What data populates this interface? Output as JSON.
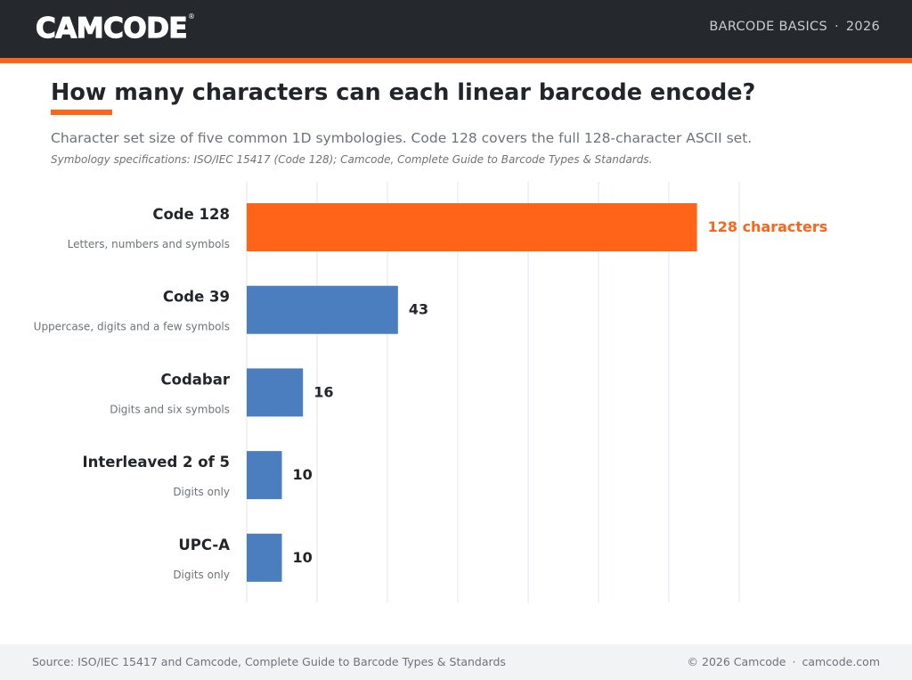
{
  "header": {
    "logo_text": "CAMCODE",
    "logo_mark": "®",
    "section": "BARCODE BASICS",
    "separator": "·",
    "year": "2026"
  },
  "title": "How many characters can each linear barcode encode?",
  "subtitle": "Character set size of five common 1D symbologies. Code 128 covers the full 128-character ASCII set.",
  "note": "Symbology specifications: ISO/IEC 15417 (Code 128); Camcode, Complete Guide to Barcode Types & Standards.",
  "colors": {
    "highlight": "#ff6419",
    "bar": "#4a7ebf",
    "grid": "#e3e5e8",
    "label": "#22262b",
    "sublabel": "#6d737b"
  },
  "chart_data": {
    "type": "bar",
    "orientation": "horizontal",
    "categories": [
      "Code 128",
      "Code 39",
      "Codabar",
      "Interleaved 2 of 5",
      "UPC-A"
    ],
    "descriptions": [
      "Letters, numbers and symbols",
      "Uppercase, digits and a few symbols",
      "Digits and six symbols",
      "Digits only",
      "Digits only"
    ],
    "values": [
      128,
      43,
      16,
      10,
      10
    ],
    "value_labels": [
      "128 characters",
      "43",
      "16",
      "10",
      "10"
    ],
    "highlight_index": 0,
    "xlim": [
      0,
      140
    ],
    "grid_step": 20,
    "grid": true,
    "xlabel": "",
    "ylabel": ""
  },
  "footer": {
    "source": "Source: ISO/IEC 15417 and Camcode, Complete Guide to Barcode Types & Standards",
    "copyright": "© 2026 Camcode",
    "separator": "·",
    "site": "camcode.com"
  }
}
